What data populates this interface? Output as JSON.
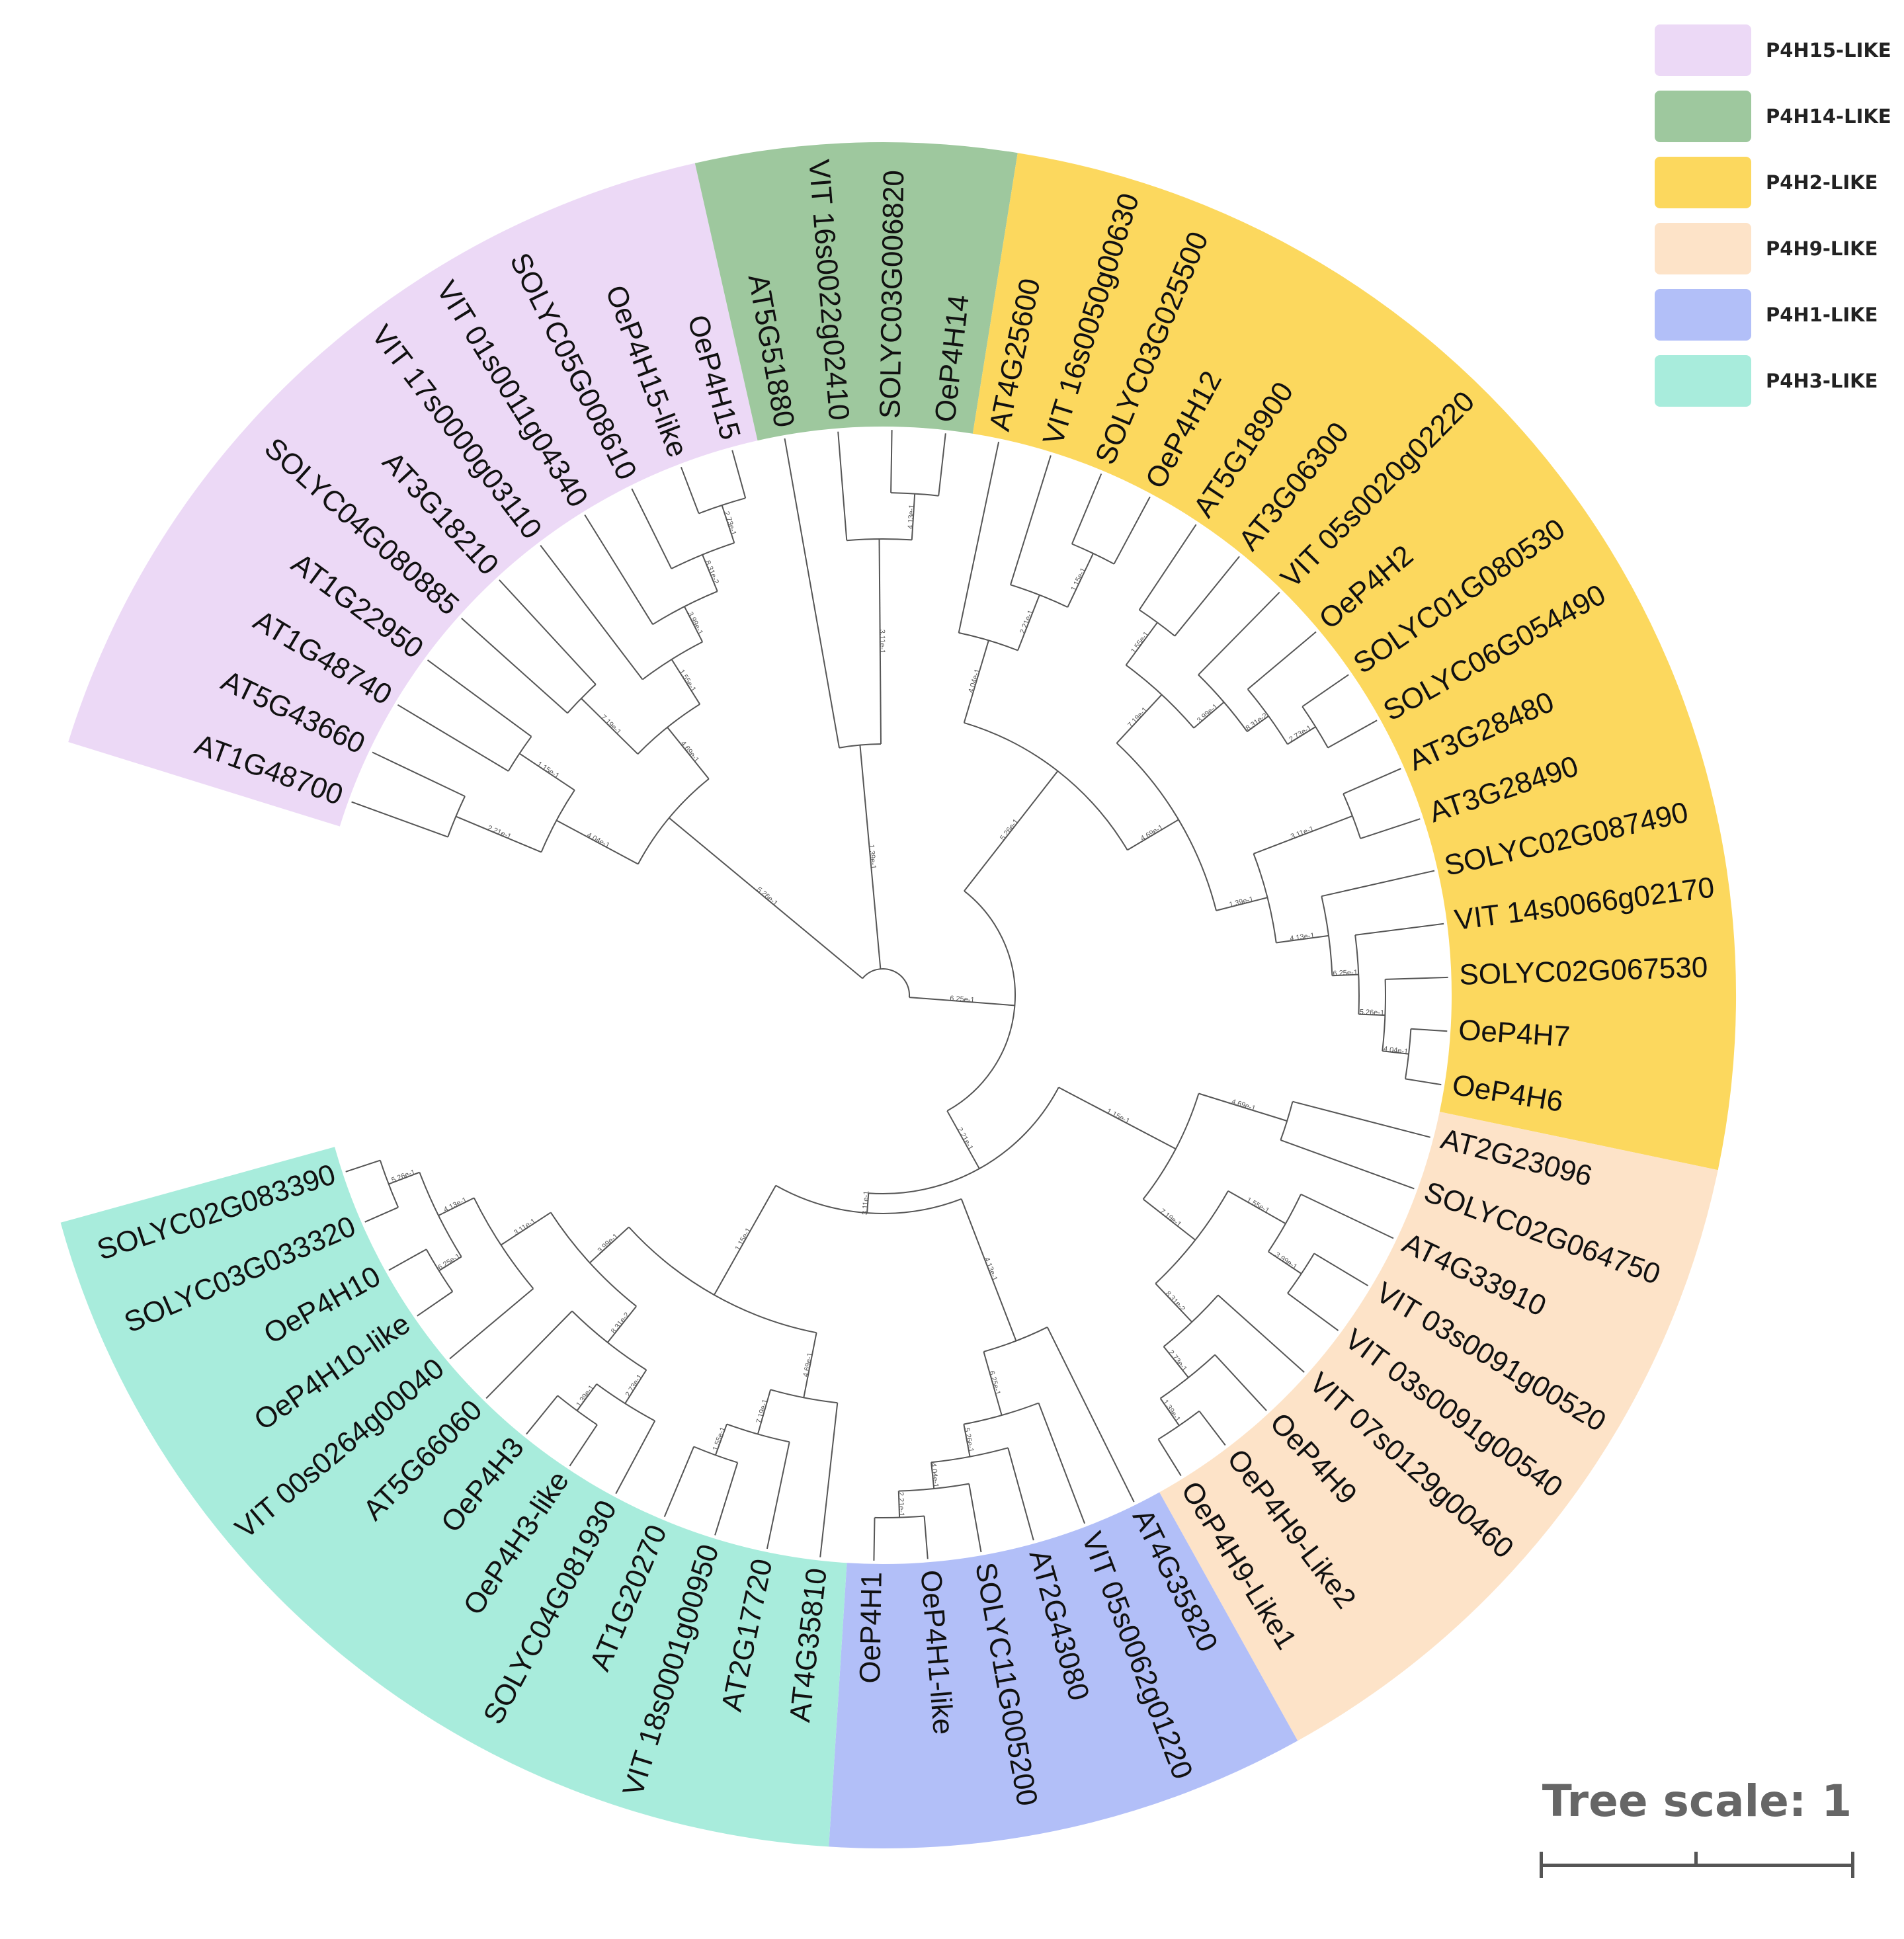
{
  "clades": [
    {
      "name": "P4H15-LIKE",
      "color": "#ecd9f6",
      "leaves": [
        "AT1G48700",
        "AT5G43660",
        "AT1G48740",
        "AT1G22950",
        "SOLYC04G080885",
        "AT3G18210",
        "VIT 17s0000g03110",
        "VIT 01s0011g04340",
        "SOLYC05G008610",
        "OeP4H15-like",
        "OeP4H15"
      ]
    },
    {
      "name": "P4H14-LIKE",
      "color": "#9ec89e",
      "leaves": [
        "AT5G51880",
        "VIT 16s0022g02410",
        "SOLYC03G006820",
        "OeP4H14"
      ]
    },
    {
      "name": "P4H2-LIKE",
      "color": "#fcd85e",
      "leaves": [
        "AT4G25600",
        "VIT 16s0050g00630",
        "SOLYC03G025500",
        "OeP4H12",
        "AT5G18900",
        "AT3G06300",
        "VIT 05s0020g02220",
        "OeP4H2",
        "SOLYC01G080530",
        "SOLYC06G054490",
        "AT3G28480",
        "AT3G28490",
        "SOLYC02G087490",
        "VIT 14s0066g02170",
        "SOLYC02G067530",
        "OeP4H7",
        "OeP4H6"
      ]
    },
    {
      "name": "P4H9-LIKE",
      "color": "#fde3c8",
      "leaves": [
        "AT2G23096",
        "SOLYC02G064750",
        "AT4G33910",
        "VIT 03s0091g00520",
        "VIT 03s0091g00540",
        "VIT 07s0129g00460",
        "OeP4H9",
        "OeP4H9-Like2",
        "OeP4H9-Like1"
      ]
    },
    {
      "name": "P4H1-LIKE",
      "color": "#b2bff8",
      "leaves": [
        "AT4G35820",
        "VIT 05s0062g01220",
        "AT2G43080",
        "SOLYC11G005200",
        "OeP4H1-like",
        "OeP4H1"
      ]
    },
    {
      "name": "P4H3-LIKE",
      "color": "#a8ecdc",
      "leaves": [
        "AT4G35810",
        "AT2G17720",
        "VIT 18s0001g00950",
        "AT1G20270",
        "SOLYC04G081930",
        "OeP4H3-like",
        "OeP4H3",
        "AT5G66060",
        "VIT 00s0264g00040",
        "OeP4H10-like",
        "OeP4H10",
        "SOLYC03G033320",
        "SOLYC02G083390"
      ]
    }
  ],
  "legend": [
    {
      "label": "P4H15-LIKE",
      "color": "#ecd9f6"
    },
    {
      "label": "P4H14-LIKE",
      "color": "#9ec89e"
    },
    {
      "label": "P4H2-LIKE",
      "color": "#fcd85e"
    },
    {
      "label": "P4H9-LIKE",
      "color": "#fde3c8"
    },
    {
      "label": "P4H1-LIKE",
      "color": "#b2bff8"
    },
    {
      "label": "P4H3-LIKE",
      "color": "#a8ecdc"
    }
  ],
  "scale": {
    "text": "Tree scale: 1"
  },
  "branch_values": [
    "5.26e-1",
    "4.04e-1",
    "2.21e-1",
    "1.15e-1",
    "4.69e-1",
    "7.19e-1",
    "1.55e-1",
    "3.99e-1",
    "8.31e-2",
    "2.73e-1",
    "1.39e-1",
    "3.11e-1",
    "4.13e-1",
    "6.25e-1"
  ],
  "colors": {
    "branch": "#555555",
    "label": "#111111",
    "bootstrap": "#555555",
    "background": "#ffffff"
  }
}
